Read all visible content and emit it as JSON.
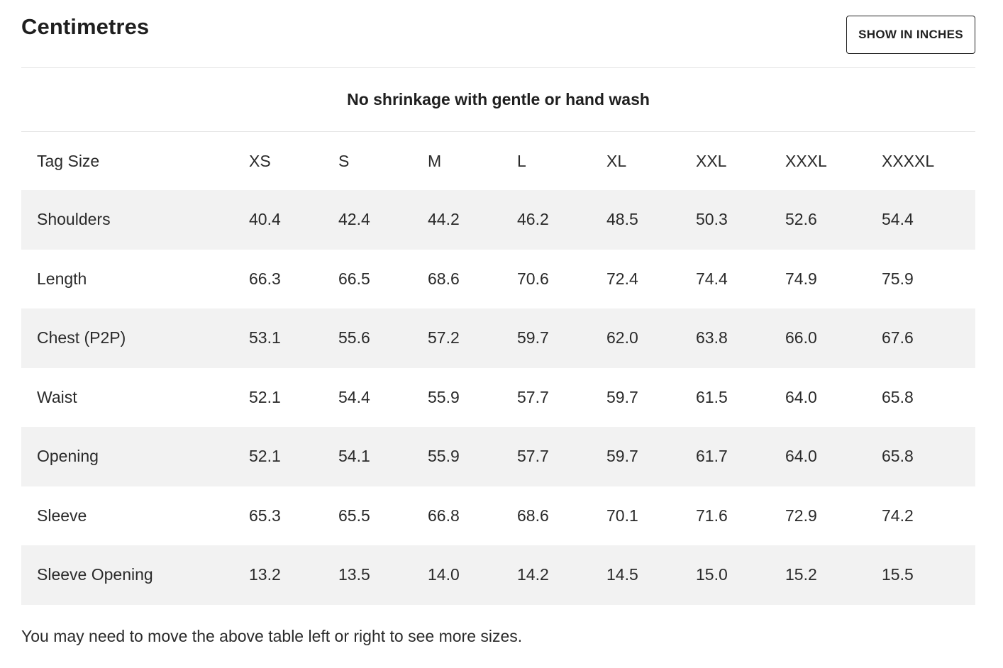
{
  "header": {
    "title": "Centimetres",
    "toggle_label": "SHOW IN INCHES"
  },
  "note": "No shrinkage with gentle or hand wash",
  "table": {
    "row_header": "Tag Size",
    "sizes": [
      "XS",
      "S",
      "M",
      "L",
      "XL",
      "XXL",
      "XXXL",
      "XXXXL"
    ],
    "rows": [
      {
        "label": "Shoulders",
        "values": [
          "40.4",
          "42.4",
          "44.2",
          "46.2",
          "48.5",
          "50.3",
          "52.6",
          "54.4"
        ]
      },
      {
        "label": "Length",
        "values": [
          "66.3",
          "66.5",
          "68.6",
          "70.6",
          "72.4",
          "74.4",
          "74.9",
          "75.9"
        ]
      },
      {
        "label": "Chest (P2P)",
        "values": [
          "53.1",
          "55.6",
          "57.2",
          "59.7",
          "62.0",
          "63.8",
          "66.0",
          "67.6"
        ]
      },
      {
        "label": "Waist",
        "values": [
          "52.1",
          "54.4",
          "55.9",
          "57.7",
          "59.7",
          "61.5",
          "64.0",
          "65.8"
        ]
      },
      {
        "label": "Opening",
        "values": [
          "52.1",
          "54.1",
          "55.9",
          "57.7",
          "59.7",
          "61.7",
          "64.0",
          "65.8"
        ]
      },
      {
        "label": "Sleeve",
        "values": [
          "65.3",
          "65.5",
          "66.8",
          "68.6",
          "70.1",
          "71.6",
          "72.9",
          "74.2"
        ]
      },
      {
        "label": "Sleeve Opening",
        "values": [
          "13.2",
          "13.5",
          "14.0",
          "14.2",
          "14.5",
          "15.0",
          "15.2",
          "15.5"
        ]
      }
    ]
  },
  "footnote": "You may need to move the above table left or right to see more sizes."
}
